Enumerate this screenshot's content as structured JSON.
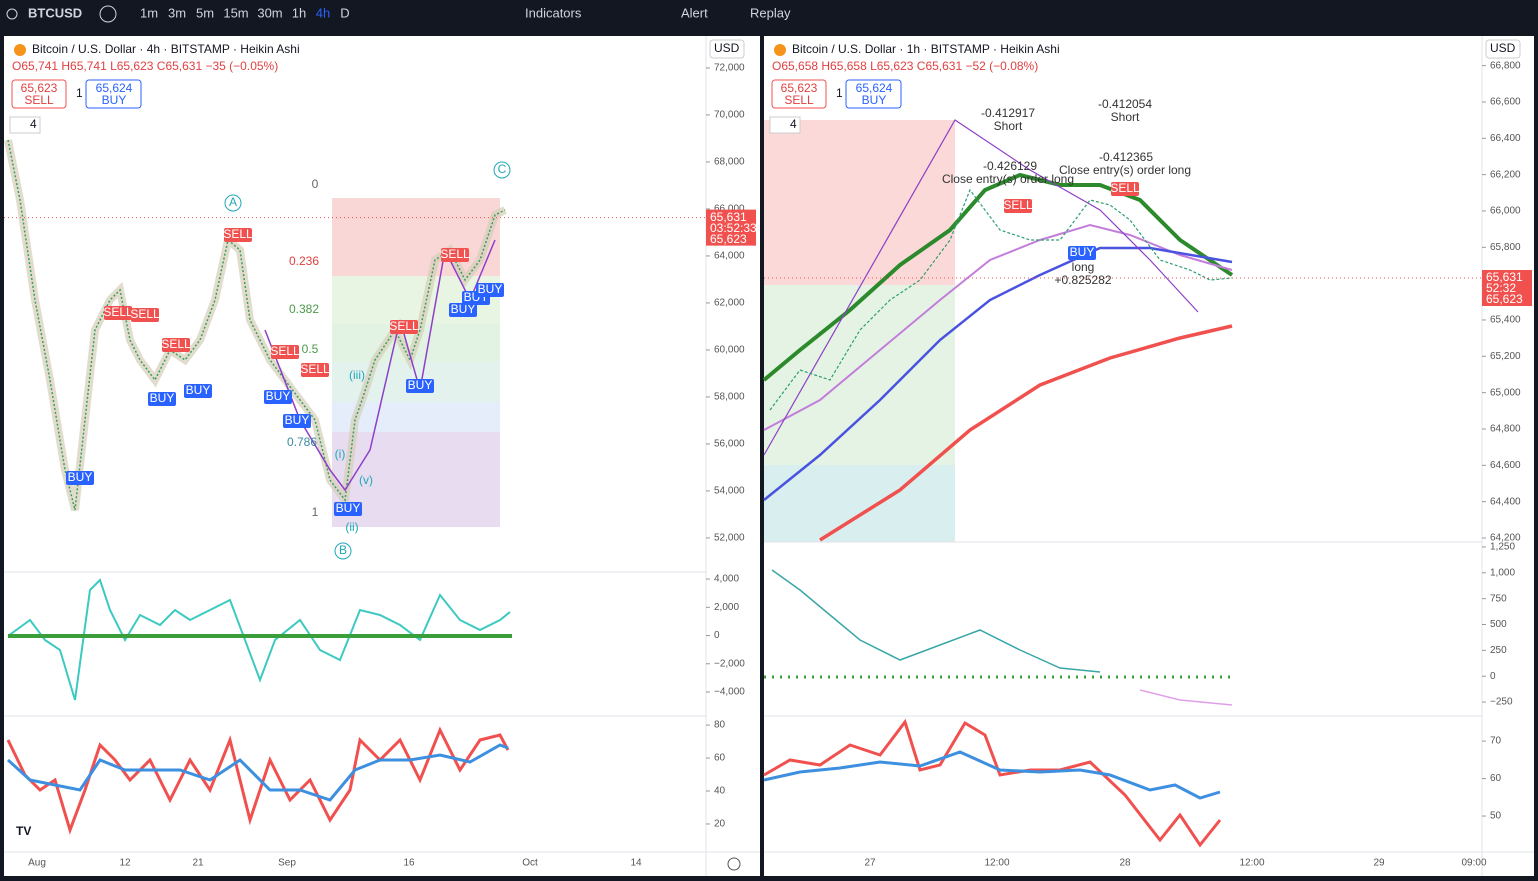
{
  "toolbar": {
    "symbol": "BTCUSD",
    "intervals": [
      "1m",
      "3m",
      "5m",
      "15m",
      "30m",
      "1h",
      "4h",
      "D"
    ],
    "active_interval": "4h",
    "indicators": "Indicators",
    "alert": "Alert",
    "replay": "Replay"
  },
  "panes": [
    {
      "title": "Bitcoin / U.S. Dollar · 4h · BITSTAMP · Heikin Ashi",
      "ohlc": "O65,741 H65,741 L65,623 C65,631 −35 (−0.05%)",
      "sell": {
        "price": "65,623",
        "label": "SELL"
      },
      "quantity": "1",
      "buy": {
        "price": "65,624",
        "label": "BUY"
      },
      "legend_count": "4",
      "currency": "USD",
      "ylim": [
        50550,
        73360
      ],
      "price_ticks": [
        {
          "value": 72000,
          "label": "72,000"
        },
        {
          "value": 70000,
          "label": "70,000"
        },
        {
          "value": 68000,
          "label": "68,000"
        },
        {
          "value": 66000,
          "label": "66,000"
        },
        {
          "value": 64000,
          "label": "64,000"
        },
        {
          "value": 62000,
          "label": "62,000"
        },
        {
          "value": 60000,
          "label": "60,000"
        },
        {
          "value": 58000,
          "label": "58,000"
        },
        {
          "value": 56000,
          "label": "56,000"
        },
        {
          "value": 54000,
          "label": "54,000"
        },
        {
          "value": 52000,
          "label": "52,000"
        }
      ],
      "last_price": {
        "value": 65631,
        "label": "65,631",
        "countdown": "03:52:33",
        "bid": "65,623"
      },
      "oscillator": {
        "ylim": [
          -5700,
          4500
        ],
        "ticks": [
          {
            "value": 4000,
            "label": "4,000"
          },
          {
            "value": 2000,
            "label": "2,000"
          },
          0,
          {
            "value": -2000,
            "label": "−2,000"
          },
          {
            "value": -4000,
            "label": "−4,000"
          }
        ]
      },
      "rsi": {
        "ylim": [
          3,
          85.5
        ],
        "ticks": [
          80,
          60,
          40,
          20
        ]
      },
      "time_labels": [
        "Aug",
        "12",
        "21",
        "Sep",
        "16",
        "Oct",
        "14"
      ],
      "annotations": [
        "A",
        "B",
        "C",
        "0",
        "0.236",
        "0.382",
        "0.5",
        "0.786",
        "1",
        "(i)",
        "(ii)",
        "(iii)",
        "(v)"
      ],
      "signals": [
        "SELL",
        "SELL",
        "SELL",
        "SELL",
        "SELL",
        "SELL",
        "SELL",
        "SELL",
        "BUY",
        "BUY",
        "BUY",
        "BUY",
        "BUY",
        "BUY",
        "BUY",
        "BUY",
        "BUY",
        "BUY"
      ]
    },
    {
      "title": "Bitcoin / U.S. Dollar · 1h · BITSTAMP · Heikin Ashi",
      "ohlc": "O65,658 H65,658 L65,623 C65,631 −52 (−0.08%)",
      "sell": {
        "price": "65,623",
        "label": "SELL"
      },
      "quantity": "1",
      "buy": {
        "price": "65,624",
        "label": "BUY"
      },
      "legend_count": "4",
      "currency": "USD",
      "ylim": [
        64178,
        66963
      ],
      "price_ticks": [
        {
          "value": 66800,
          "label": "66,800"
        },
        {
          "value": 66600,
          "label": "66,600"
        },
        {
          "value": 66400,
          "label": "66,400"
        },
        {
          "value": 66200,
          "label": "66,200"
        },
        {
          "value": 66000,
          "label": "66,000"
        },
        {
          "value": 65800,
          "label": "65,800"
        },
        {
          "value": 65400,
          "label": "65,400"
        },
        {
          "value": 65200,
          "label": "65,200"
        },
        {
          "value": 65000,
          "label": "65,000"
        },
        {
          "value": 64800,
          "label": "64,800"
        },
        {
          "value": 64600,
          "label": "64,600"
        },
        {
          "value": 64400,
          "label": "64,400"
        },
        {
          "value": 64200,
          "label": "64,200"
        }
      ],
      "last_price": {
        "value": 65631,
        "label": "65,631",
        "countdown": "52:32",
        "bid": "65,623"
      },
      "oscillator": {
        "ylim": [
          -385,
          1298
        ],
        "ticks": [
          {
            "value": 1250,
            "label": "1,250"
          },
          {
            "value": 1000,
            "label": "1,000"
          },
          750,
          500,
          250,
          0,
          {
            "value": -250,
            "label": "−250"
          }
        ]
      },
      "rsi": {
        "ylim": [
          40.4,
          76.7
        ],
        "ticks": [
          70,
          60,
          50
        ]
      },
      "time_labels": [
        "27",
        "12:00",
        "28",
        "12:00",
        "29",
        "09:00"
      ],
      "annotations": [
        "-0.412917",
        "Short",
        "-0.412054",
        "Short",
        "-0.426129",
        "Close entry(s) order long",
        "-0.412365",
        "Close entry(s) order long",
        "long",
        "+0.825282"
      ],
      "signals": [
        "SELL",
        "SELL",
        "BUY"
      ]
    }
  ]
}
